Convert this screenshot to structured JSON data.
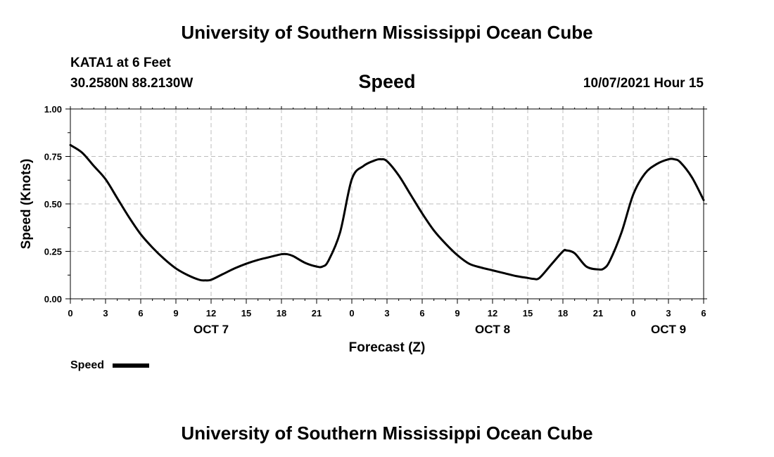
{
  "header": {
    "title": "University of Southern Mississippi Ocean Cube",
    "station": "KATA1 at 6 Feet",
    "coordinates": "30.2580N  88.2130W",
    "variable": "Speed",
    "run_time": "10/07/2021 Hour 15"
  },
  "footer": {
    "title": "University of Southern Mississippi Ocean Cube"
  },
  "legend": {
    "label": "Speed",
    "color": "#000000"
  },
  "chart_data": {
    "type": "line",
    "xlabel": "Forecast (Z)",
    "ylabel": "Speed (Knots)",
    "xlim": [
      0,
      54
    ],
    "ylim": [
      0,
      1
    ],
    "grid": true,
    "y_ticks": [
      {
        "value": 0,
        "label": "0.00"
      },
      {
        "value": 0.25,
        "label": "0.25"
      },
      {
        "value": 0.5,
        "label": "0.50"
      },
      {
        "value": 0.75,
        "label": "0.75"
      },
      {
        "value": 1,
        "label": "1.00"
      }
    ],
    "x_ticks": [
      {
        "value": 0,
        "label": "0"
      },
      {
        "value": 3,
        "label": "3"
      },
      {
        "value": 6,
        "label": "6"
      },
      {
        "value": 9,
        "label": "9"
      },
      {
        "value": 12,
        "label": "12"
      },
      {
        "value": 15,
        "label": "15"
      },
      {
        "value": 18,
        "label": "18"
      },
      {
        "value": 21,
        "label": "21"
      },
      {
        "value": 24,
        "label": "0"
      },
      {
        "value": 27,
        "label": "3"
      },
      {
        "value": 30,
        "label": "6"
      },
      {
        "value": 33,
        "label": "9"
      },
      {
        "value": 36,
        "label": "12"
      },
      {
        "value": 39,
        "label": "15"
      },
      {
        "value": 42,
        "label": "18"
      },
      {
        "value": 45,
        "label": "21"
      },
      {
        "value": 48,
        "label": "0"
      },
      {
        "value": 51,
        "label": "3"
      },
      {
        "value": 54,
        "label": "6"
      }
    ],
    "date_labels": [
      {
        "value": 12,
        "label": "OCT 7"
      },
      {
        "value": 36,
        "label": "OCT 8"
      },
      {
        "value": 51,
        "label": "OCT 9"
      }
    ],
    "series": [
      {
        "name": "Speed",
        "color": "#000000",
        "x": [
          0,
          1,
          2,
          3,
          4,
          5,
          6,
          7,
          8,
          9,
          10,
          11,
          11.5,
          12,
          13,
          14,
          15,
          16,
          17,
          18,
          18.5,
          19,
          20,
          21,
          21.5,
          22,
          23,
          24,
          25,
          26,
          26.5,
          27,
          28,
          29,
          30,
          31,
          32,
          33,
          34,
          35,
          36,
          37,
          38,
          39,
          39.5,
          40,
          41,
          42,
          42.3,
          43,
          44,
          45,
          45.5,
          46,
          47,
          48,
          49,
          50,
          51,
          51.5,
          52,
          53,
          54
        ],
        "y": [
          0.81,
          0.77,
          0.7,
          0.63,
          0.53,
          0.43,
          0.34,
          0.27,
          0.21,
          0.16,
          0.125,
          0.1,
          0.097,
          0.1,
          0.13,
          0.16,
          0.185,
          0.205,
          0.22,
          0.235,
          0.235,
          0.225,
          0.19,
          0.17,
          0.17,
          0.2,
          0.35,
          0.63,
          0.7,
          0.73,
          0.735,
          0.725,
          0.65,
          0.55,
          0.45,
          0.36,
          0.29,
          0.23,
          0.185,
          0.165,
          0.15,
          0.135,
          0.12,
          0.11,
          0.105,
          0.11,
          0.18,
          0.25,
          0.255,
          0.24,
          0.17,
          0.155,
          0.16,
          0.2,
          0.35,
          0.55,
          0.66,
          0.71,
          0.735,
          0.735,
          0.72,
          0.64,
          0.52
        ]
      }
    ]
  }
}
